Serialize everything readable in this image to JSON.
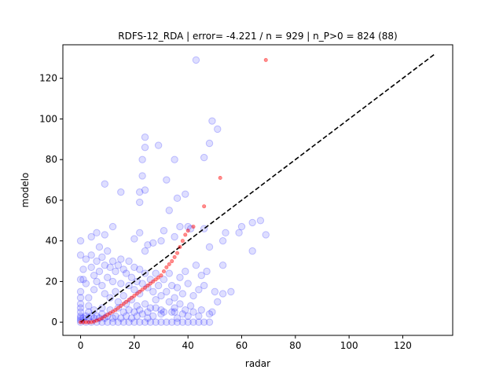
{
  "chart_data": {
    "type": "scatter",
    "title": "RDFS-12_RDA | error= -4.221 / n = 929 | n_P>0 = 824 (88)",
    "xlabel": "radar",
    "ylabel": "modelo",
    "xlim": [
      -6.6,
      138.6
    ],
    "ylim": [
      -6.5,
      136.5
    ],
    "xticks": [
      "0",
      "20",
      "40",
      "60",
      "80",
      "100",
      "120"
    ],
    "yticks": [
      "0",
      "20",
      "40",
      "60",
      "80",
      "100",
      "120"
    ],
    "grid": false,
    "legend": "none",
    "colors": {
      "scatter": "#0000ff",
      "quantile": "#ff0000",
      "reference": "#000000"
    },
    "series": [
      {
        "role": "scatter",
        "points": [
          [
            43,
            129
          ],
          [
            49,
            99
          ],
          [
            51,
            95
          ],
          [
            24,
            91
          ],
          [
            48,
            88
          ],
          [
            29,
            87
          ],
          [
            24,
            86
          ],
          [
            46,
            81
          ],
          [
            23,
            80
          ],
          [
            35,
            80
          ],
          [
            9,
            68
          ],
          [
            23,
            72
          ],
          [
            32,
            70
          ],
          [
            15,
            64
          ],
          [
            22,
            64
          ],
          [
            24,
            65
          ],
          [
            39,
            63
          ],
          [
            36,
            61
          ],
          [
            22,
            59
          ],
          [
            64,
            49
          ],
          [
            60,
            47
          ],
          [
            67,
            50
          ],
          [
            69,
            43
          ],
          [
            54,
            44
          ],
          [
            40,
            47
          ],
          [
            37,
            47
          ],
          [
            41,
            46
          ],
          [
            46,
            46
          ],
          [
            59,
            44
          ],
          [
            53,
            40
          ],
          [
            64,
            35
          ],
          [
            48,
            37
          ],
          [
            27,
            39
          ],
          [
            31,
            45
          ],
          [
            35,
            42
          ],
          [
            30,
            40
          ],
          [
            25,
            38
          ],
          [
            24,
            35
          ],
          [
            4,
            42
          ],
          [
            6,
            44
          ],
          [
            9,
            43
          ],
          [
            12,
            47
          ],
          [
            20,
            41
          ],
          [
            22,
            44
          ],
          [
            33,
            55
          ],
          [
            0,
            40
          ],
          [
            0,
            33
          ],
          [
            0,
            21
          ],
          [
            0,
            15
          ],
          [
            0,
            12
          ],
          [
            0,
            9
          ],
          [
            0,
            7
          ],
          [
            0,
            5
          ],
          [
            0,
            3
          ],
          [
            0,
            2
          ],
          [
            0,
            1
          ],
          [
            0,
            0
          ],
          [
            1,
            26
          ],
          [
            1,
            21
          ],
          [
            2,
            31
          ],
          [
            2,
            19
          ],
          [
            3,
            12
          ],
          [
            3,
            8
          ],
          [
            4,
            33
          ],
          [
            4,
            27
          ],
          [
            5,
            23
          ],
          [
            5,
            16
          ],
          [
            6,
            30
          ],
          [
            6,
            20
          ],
          [
            7,
            37
          ],
          [
            7,
            25
          ],
          [
            8,
            32
          ],
          [
            8,
            18
          ],
          [
            9,
            28
          ],
          [
            9,
            14
          ],
          [
            10,
            35
          ],
          [
            10,
            22
          ],
          [
            11,
            27
          ],
          [
            11,
            12
          ],
          [
            12,
            30
          ],
          [
            12,
            20
          ],
          [
            13,
            25
          ],
          [
            13,
            15
          ],
          [
            14,
            28
          ],
          [
            14,
            10
          ],
          [
            15,
            31
          ],
          [
            15,
            19
          ],
          [
            16,
            26
          ],
          [
            16,
            13
          ],
          [
            17,
            24
          ],
          [
            17,
            9
          ],
          [
            18,
            30
          ],
          [
            18,
            18
          ],
          [
            19,
            22
          ],
          [
            19,
            11
          ],
          [
            20,
            27
          ],
          [
            20,
            16
          ],
          [
            21,
            20
          ],
          [
            21,
            8
          ],
          [
            22,
            26
          ],
          [
            22,
            14
          ],
          [
            23,
            19
          ],
          [
            24,
            24
          ],
          [
            24,
            9
          ],
          [
            25,
            17
          ],
          [
            26,
            21
          ],
          [
            26,
            7
          ],
          [
            27,
            15
          ],
          [
            28,
            24
          ],
          [
            28,
            11
          ],
          [
            29,
            18
          ],
          [
            30,
            13
          ],
          [
            30,
            6
          ],
          [
            31,
            21
          ],
          [
            32,
            15
          ],
          [
            33,
            10
          ],
          [
            33,
            24
          ],
          [
            34,
            18
          ],
          [
            35,
            12
          ],
          [
            35,
            5
          ],
          [
            36,
            17
          ],
          [
            37,
            22
          ],
          [
            37,
            9
          ],
          [
            38,
            14
          ],
          [
            38,
            4
          ],
          [
            39,
            25
          ],
          [
            40,
            19
          ],
          [
            41,
            8
          ],
          [
            42,
            13
          ],
          [
            43,
            28
          ],
          [
            44,
            16
          ],
          [
            45,
            23
          ],
          [
            45,
            6
          ],
          [
            46,
            18
          ],
          [
            47,
            25
          ],
          [
            48,
            4
          ],
          [
            49,
            5
          ],
          [
            50,
            15
          ],
          [
            51,
            10
          ],
          [
            53,
            28
          ],
          [
            53,
            14
          ],
          [
            56,
            15
          ],
          [
            44,
            3
          ],
          [
            40,
            3
          ],
          [
            36,
            2
          ],
          [
            34,
            5
          ],
          [
            30,
            4
          ],
          [
            27,
            3
          ],
          [
            25,
            2
          ],
          [
            23,
            4
          ],
          [
            21,
            3
          ],
          [
            19,
            2
          ],
          [
            17,
            3
          ],
          [
            15,
            2
          ],
          [
            13,
            3
          ],
          [
            12,
            2
          ],
          [
            10,
            3
          ],
          [
            9,
            2
          ],
          [
            8,
            4
          ],
          [
            7,
            2
          ],
          [
            6,
            3
          ],
          [
            5,
            2
          ],
          [
            4,
            3
          ],
          [
            3,
            2
          ],
          [
            2,
            3
          ],
          [
            1,
            2
          ],
          [
            3,
            5
          ],
          [
            5,
            6
          ],
          [
            8,
            7
          ],
          [
            11,
            6
          ],
          [
            14,
            7
          ],
          [
            16,
            5
          ],
          [
            18,
            6
          ],
          [
            20,
            5
          ],
          [
            22,
            6
          ],
          [
            25,
            5
          ],
          [
            28,
            7
          ],
          [
            31,
            5
          ],
          [
            35,
            7
          ],
          [
            39,
            6
          ],
          [
            42,
            5
          ],
          [
            2,
            0
          ],
          [
            4,
            0
          ],
          [
            6,
            0
          ],
          [
            8,
            0
          ],
          [
            10,
            0
          ],
          [
            12,
            0
          ],
          [
            14,
            0
          ],
          [
            16,
            0
          ],
          [
            18,
            0
          ],
          [
            20,
            0
          ],
          [
            22,
            0
          ],
          [
            24,
            0
          ],
          [
            26,
            0
          ],
          [
            28,
            0
          ],
          [
            30,
            0
          ],
          [
            32,
            0
          ],
          [
            34,
            0
          ],
          [
            36,
            0
          ],
          [
            38,
            0
          ],
          [
            40,
            0
          ],
          [
            42,
            0
          ],
          [
            44,
            0
          ],
          [
            46,
            0
          ],
          [
            48,
            0
          ]
        ]
      },
      {
        "role": "quantile",
        "points": [
          [
            0,
            0
          ],
          [
            1,
            0
          ],
          [
            2,
            0
          ],
          [
            3,
            0
          ],
          [
            4,
            0
          ],
          [
            5,
            0.3
          ],
          [
            6,
            0.8
          ],
          [
            7,
            1.3
          ],
          [
            8,
            2
          ],
          [
            9,
            2.8
          ],
          [
            10,
            3.6
          ],
          [
            11,
            4.4
          ],
          [
            12,
            5.2
          ],
          [
            13,
            6
          ],
          [
            14,
            7
          ],
          [
            15,
            8
          ],
          [
            16,
            9
          ],
          [
            17,
            10
          ],
          [
            18,
            11
          ],
          [
            19,
            12
          ],
          [
            20,
            13
          ],
          [
            21,
            14
          ],
          [
            22,
            15
          ],
          [
            23,
            16
          ],
          [
            24,
            17
          ],
          [
            25,
            18
          ],
          [
            26,
            19
          ],
          [
            27,
            20
          ],
          [
            28,
            21
          ],
          [
            29,
            22
          ],
          [
            30,
            23
          ],
          [
            31,
            25
          ],
          [
            32,
            27
          ],
          [
            33,
            28.5
          ],
          [
            34,
            30
          ],
          [
            35,
            32
          ],
          [
            36,
            34
          ],
          [
            37,
            37
          ],
          [
            38,
            40
          ],
          [
            39,
            43
          ],
          [
            40,
            45
          ],
          [
            42,
            47
          ],
          [
            46,
            57
          ],
          [
            52,
            71
          ],
          [
            69,
            129
          ]
        ]
      },
      {
        "role": "reference",
        "points": [
          [
            0,
            0
          ],
          [
            132,
            132
          ]
        ]
      }
    ]
  }
}
